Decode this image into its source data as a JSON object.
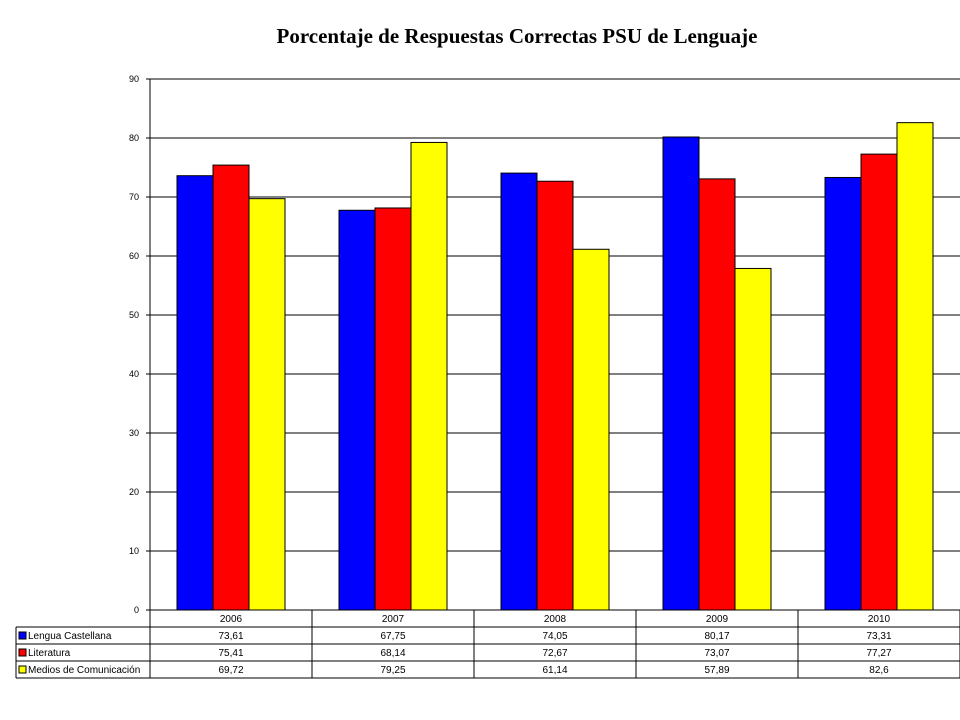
{
  "chart_data": {
    "type": "bar",
    "title": "Porcentaje de Respuestas Correctas PSU de Lenguaje",
    "categories": [
      "2006",
      "2007",
      "2008",
      "2009",
      "2010"
    ],
    "ylim": [
      0,
      90
    ],
    "yticks": [
      0,
      10,
      20,
      30,
      40,
      50,
      60,
      70,
      80,
      90
    ],
    "grid": true,
    "legend": "data-table",
    "series": [
      {
        "name": "Lengua Castellana",
        "color": "#0000ff",
        "values": [
          73.61,
          67.75,
          74.05,
          80.17,
          73.31
        ],
        "labels": [
          "73,61",
          "67,75",
          "74,05",
          "80,17",
          "73,31"
        ]
      },
      {
        "name": "Literatura",
        "color": "#ff0000",
        "values": [
          75.41,
          68.14,
          72.67,
          73.07,
          77.27
        ],
        "labels": [
          "75,41",
          "68,14",
          "72,67",
          "73,07",
          "77,27"
        ]
      },
      {
        "name": "Medios de Comunicación",
        "color": "#ffff00",
        "values": [
          69.72,
          79.25,
          61.14,
          57.89,
          82.6
        ],
        "labels": [
          "69,72",
          "79,25",
          "61,14",
          "57,89",
          "82,6"
        ]
      }
    ]
  }
}
